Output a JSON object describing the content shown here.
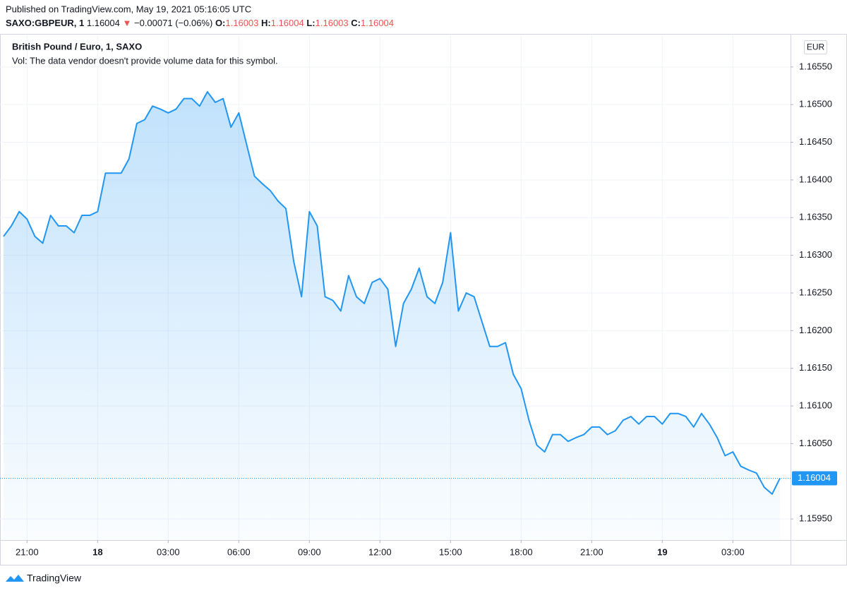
{
  "header": {
    "published": "Published on TradingView.com, May 19, 2021 05:16:05 UTC",
    "symbol": "SAXO:GBPEUR, 1",
    "price": "1.16004",
    "arrow": "▼",
    "change": "−0.00071 (−0.06%)",
    "o_label": "O:",
    "o": "1.16003",
    "h_label": "H:",
    "h": "1.16004",
    "l_label": "L:",
    "l": "1.16003",
    "c_label": "C:",
    "c": "1.16004"
  },
  "chart_data": {
    "type": "area",
    "legend_title": "British Pound / Euro, 1, SAXO",
    "volume_note": "Vol: The data vendor doesn't provide volume data for this symbol.",
    "currency": "EUR",
    "color": "#2196f3",
    "grid": true,
    "categories": [
      null,
      null,
      null,
      "21:00",
      null,
      null,
      null,
      null,
      null,
      null,
      null,
      null,
      "18",
      null,
      null,
      null,
      null,
      null,
      null,
      null,
      null,
      "03:00",
      null,
      null,
      null,
      null,
      null,
      null,
      null,
      null,
      "06:00",
      null,
      null,
      null,
      null,
      null,
      null,
      null,
      null,
      "09:00",
      null,
      null,
      null,
      null,
      null,
      null,
      null,
      null,
      "12:00",
      null,
      null,
      null,
      null,
      null,
      null,
      null,
      null,
      "15:00",
      null,
      null,
      null,
      null,
      null,
      null,
      null,
      null,
      "18:00",
      null,
      null,
      null,
      null,
      null,
      null,
      null,
      null,
      "21:00",
      null,
      null,
      null,
      null,
      null,
      null,
      null,
      null,
      "19",
      null,
      null,
      null,
      null,
      null,
      null,
      null,
      null,
      "03:00",
      null,
      null,
      null,
      null,
      null,
      null
    ],
    "values": [
      1.16325,
      1.16339,
      1.16358,
      1.16348,
      1.16325,
      1.16316,
      1.16353,
      1.16339,
      1.16339,
      1.1633,
      1.16353,
      1.16353,
      1.16358,
      1.16409,
      1.16409,
      1.16409,
      1.16428,
      1.16475,
      1.1648,
      1.16498,
      1.16494,
      1.16489,
      1.16494,
      1.16508,
      1.16508,
      1.16498,
      1.16517,
      1.16503,
      1.16508,
      1.1647,
      1.16489,
      1.16447,
      1.16405,
      1.16395,
      1.16386,
      1.16372,
      1.16362,
      1.16292,
      1.16245,
      1.16358,
      1.16339,
      1.16245,
      1.1624,
      1.16226,
      1.16273,
      1.16245,
      1.16236,
      1.16264,
      1.16269,
      1.16255,
      1.16179,
      1.16236,
      1.16255,
      1.16283,
      1.16245,
      1.16236,
      1.16264,
      1.1633,
      1.16226,
      1.1625,
      1.16245,
      1.16212,
      1.16179,
      1.16179,
      1.16184,
      1.16142,
      1.16123,
      1.16081,
      1.16048,
      1.16039,
      1.16062,
      1.16062,
      1.16053,
      1.16058,
      1.16062,
      1.16072,
      1.16072,
      1.16062,
      1.16067,
      1.16081,
      1.16086,
      1.16076,
      1.16086,
      1.16086,
      1.16076,
      1.1609,
      1.1609,
      1.16086,
      1.16072,
      1.1609,
      1.16076,
      1.16058,
      1.16034,
      1.16039,
      1.1602,
      1.16015,
      1.16011,
      1.15992,
      1.15983,
      1.16004
    ],
    "ylim": [
      1.15922,
      1.16592
    ],
    "yticks": [
      {
        "value": 1.1595,
        "label": "1.15950"
      },
      {
        "value": 1.1605,
        "label": "1.16050"
      },
      {
        "value": 1.161,
        "label": "1.16100"
      },
      {
        "value": 1.1615,
        "label": "1.16150"
      },
      {
        "value": 1.162,
        "label": "1.16200"
      },
      {
        "value": 1.1625,
        "label": "1.16250"
      },
      {
        "value": 1.163,
        "label": "1.16300"
      },
      {
        "value": 1.1635,
        "label": "1.16350"
      },
      {
        "value": 1.164,
        "label": "1.16400"
      },
      {
        "value": 1.1645,
        "label": "1.16450"
      },
      {
        "value": 1.165,
        "label": "1.16500"
      },
      {
        "value": 1.1655,
        "label": "1.16550"
      }
    ],
    "footer": "TradingView"
  }
}
